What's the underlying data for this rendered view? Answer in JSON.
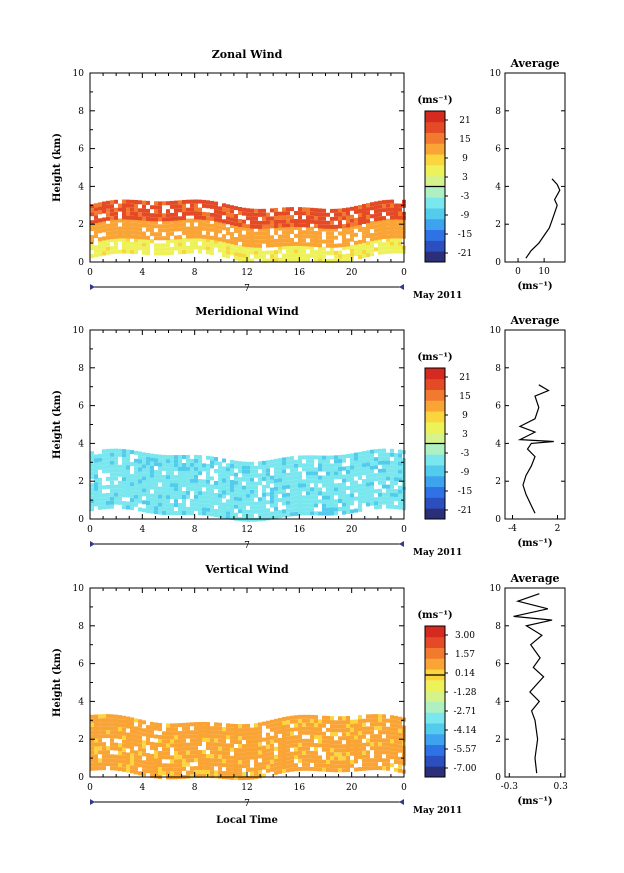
{
  "colors": {
    "colormap": [
      "#2b2f7a",
      "#2c4fbf",
      "#2f72e6",
      "#3ea3ef",
      "#52cbec",
      "#7ae6ee",
      "#aef0c2",
      "#d6f28b",
      "#eef25a",
      "#fbd53d",
      "#fba436",
      "#f27a2e",
      "#e44a25",
      "#d52a20"
    ],
    "zero_line": "#000000"
  },
  "common": {
    "x_ticks": [
      "0",
      "4",
      "8",
      "12",
      "16",
      "20",
      "0"
    ],
    "date_label": "7",
    "month_label": "May 2011",
    "x_label": "Local Time",
    "y_label": "Height (km)",
    "y_ticks": [
      "0",
      "2",
      "4",
      "6",
      "8",
      "10"
    ],
    "avg_title": "Average",
    "unit_label": "(ms⁻¹)"
  },
  "chart_data": [
    {
      "type": "heatmap",
      "title": "Zonal Wind",
      "xlabel": "",
      "ylabel": "Height (km)",
      "xlim": [
        0,
        24
      ],
      "ylim": [
        0,
        10
      ],
      "colorbar": {
        "label": "(ms⁻¹)",
        "ticks": [
          "21",
          "15",
          "9",
          "3",
          "-3",
          "-9",
          "-15",
          "-21"
        ],
        "range": [
          -24,
          24
        ]
      },
      "description_layers": [
        {
          "name": "",
          "h_min": 0.2,
          "h_max": 1.0,
          "value": 6
        },
        {
          "name": "",
          "h_min": 1.0,
          "h_max": 2.0,
          "value": 12
        },
        {
          "name": "",
          "h_min": 2.0,
          "h_max": 3.0,
          "value": 18
        }
      ],
      "average": {
        "xlim": [
          -5,
          18
        ],
        "x_ticks": [
          "0",
          "10"
        ],
        "unit_label": "(ms⁻¹)",
        "profile": [
          [
            3,
            0.2
          ],
          [
            5,
            0.6
          ],
          [
            8,
            1.0
          ],
          [
            10,
            1.4
          ],
          [
            12,
            1.8
          ],
          [
            13,
            2.2
          ],
          [
            14,
            2.6
          ],
          [
            15,
            3.0
          ],
          [
            14,
            3.3
          ],
          [
            16,
            3.8
          ],
          [
            15,
            4.1
          ],
          [
            13,
            4.4
          ]
        ]
      }
    },
    {
      "type": "heatmap",
      "title": "Meridional Wind",
      "xlabel": "",
      "ylabel": "Height (km)",
      "xlim": [
        0,
        24
      ],
      "ylim": [
        0,
        10
      ],
      "colorbar": {
        "label": "(ms⁻¹)",
        "ticks": [
          "21",
          "15",
          "9",
          "3",
          "-3",
          "-9",
          "-15",
          "-21"
        ],
        "range": [
          -24,
          24
        ]
      },
      "description_layers": [
        {
          "name": "",
          "h_min": 0.2,
          "h_max": 3.2,
          "value": -6
        }
      ],
      "average": {
        "xlim": [
          -5,
          3
        ],
        "x_ticks": [
          "-4",
          "2"
        ],
        "unit_label": "(ms⁻¹)",
        "profile": [
          [
            -1,
            0.3
          ],
          [
            -1.6,
            0.8
          ],
          [
            -2.2,
            1.3
          ],
          [
            -2.6,
            1.8
          ],
          [
            -2.2,
            2.3
          ],
          [
            -1.5,
            2.8
          ],
          [
            -1,
            3.3
          ],
          [
            -2,
            3.7
          ],
          [
            -1.5,
            4.0
          ],
          [
            1.5,
            4.1
          ],
          [
            -3,
            4.2
          ],
          [
            -1,
            4.6
          ],
          [
            -3,
            4.9
          ],
          [
            -1,
            5.3
          ],
          [
            -0.5,
            5.9
          ],
          [
            -1,
            6.5
          ],
          [
            0.8,
            6.8
          ],
          [
            -0.5,
            7.1
          ]
        ]
      }
    },
    {
      "type": "heatmap",
      "title": "Vertical Wind",
      "xlabel": "Local Time",
      "ylabel": "Height (km)",
      "xlim": [
        0,
        24
      ],
      "ylim": [
        0,
        10
      ],
      "colorbar": {
        "label": "(ms⁻¹)",
        "ticks": [
          "3.00",
          "1.57",
          "0.14",
          "-1.28",
          "-2.71",
          "-4.14",
          "-5.57",
          "-7.00"
        ],
        "range": [
          -7.7,
          3.7
        ]
      },
      "description_layers": [
        {
          "name": "",
          "h_min": 0.1,
          "h_max": 3.0,
          "value": 0.7
        }
      ],
      "average": {
        "xlim": [
          -0.35,
          0.35
        ],
        "x_ticks": [
          "-0.3",
          "0.3"
        ],
        "unit_label": "(ms⁻¹)",
        "profile": [
          [
            0.02,
            0.2
          ],
          [
            0.0,
            1.0
          ],
          [
            0.03,
            2.0
          ],
          [
            0.0,
            3.0
          ],
          [
            -0.04,
            3.5
          ],
          [
            0.05,
            4.0
          ],
          [
            -0.06,
            4.5
          ],
          [
            0.04,
            5.0
          ],
          [
            0.1,
            5.3
          ],
          [
            -0.02,
            5.8
          ],
          [
            0.06,
            6.3
          ],
          [
            -0.05,
            7.0
          ],
          [
            0.08,
            7.5
          ],
          [
            -0.1,
            8.0
          ],
          [
            0.2,
            8.3
          ],
          [
            -0.25,
            8.5
          ],
          [
            0.15,
            8.9
          ],
          [
            -0.2,
            9.3
          ],
          [
            0.05,
            9.7
          ]
        ]
      }
    }
  ]
}
